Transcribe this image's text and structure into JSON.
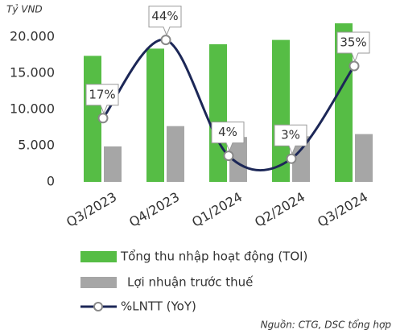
{
  "chart_data": {
    "type": "bar_line",
    "y_axis_label": "Tỷ VND",
    "categories": [
      "Q3/2023",
      "Q4/2023",
      "Q1/2024",
      "Q2/2024",
      "Q3/2024"
    ],
    "series": [
      {
        "name": "Tổng thu nhập hoạt động (TOI)",
        "color": "#56bd45",
        "type": "bar",
        "values": [
          17400,
          18400,
          19000,
          19600,
          21900
        ]
      },
      {
        "name": "Lợi nhuận trước thuế",
        "color": "#a6a6a6",
        "type": "bar",
        "values": [
          4900,
          7700,
          6200,
          6300,
          6600
        ]
      },
      {
        "name": "%LNTT (YoY)",
        "color": "#1c2757",
        "type": "line",
        "axis": "y2",
        "values": [
          17,
          44,
          4,
          3,
          35
        ],
        "value_labels": [
          "17%",
          "44%",
          "4%",
          "3%",
          "35%"
        ]
      }
    ],
    "ylim": [
      0,
      22000
    ],
    "yticks": [
      {
        "value": 0,
        "label": "0"
      },
      {
        "value": 5000,
        "label": "5.000"
      },
      {
        "value": 10000,
        "label": "10.000"
      },
      {
        "value": 15000,
        "label": "15.000"
      },
      {
        "value": 20000,
        "label": "20.000"
      }
    ],
    "y2lim": [
      -5,
      50
    ],
    "source": "Nguồn: CTG, DSC tổng hợp"
  }
}
